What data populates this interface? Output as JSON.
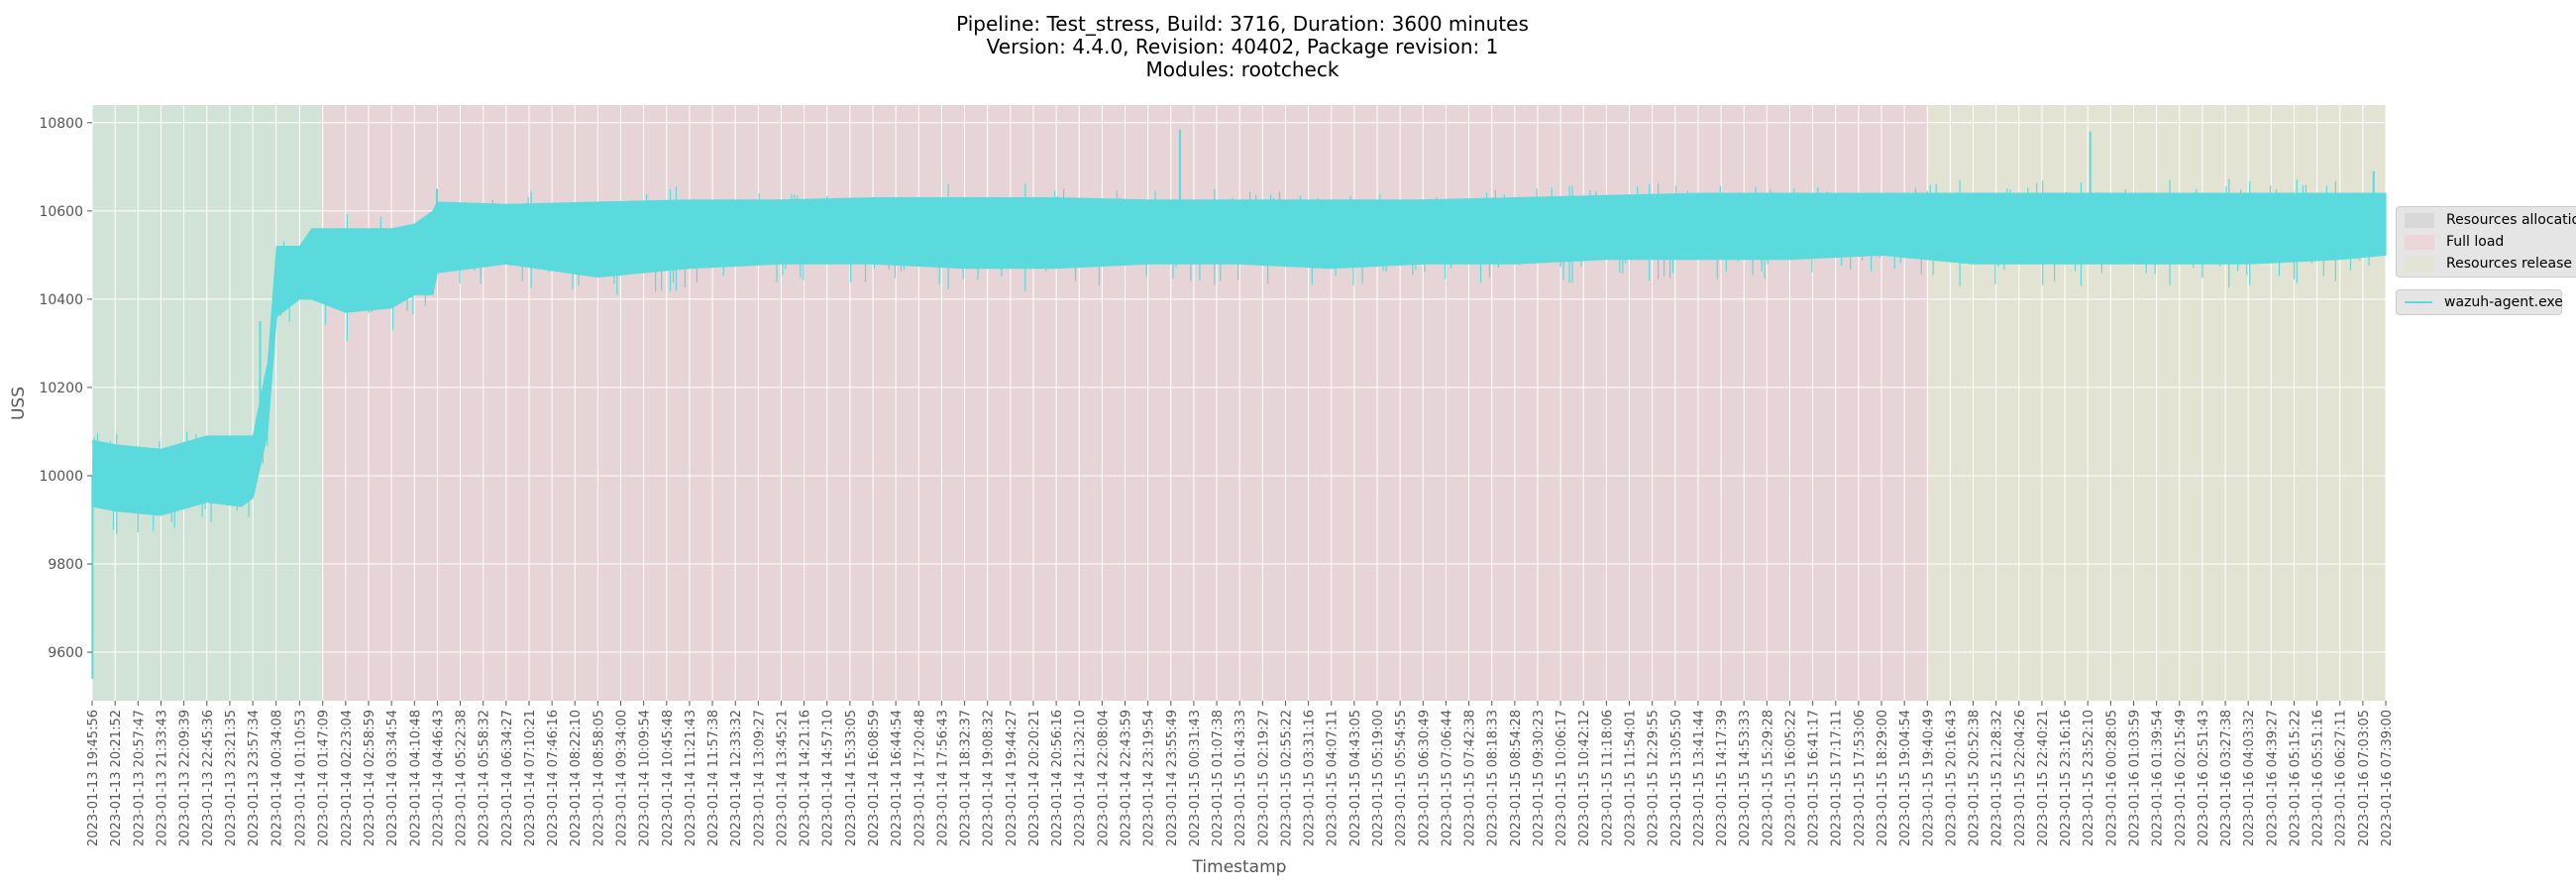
{
  "chart_data": {
    "type": "line",
    "title_lines": [
      "Pipeline: Test_stress, Build: 3716, Duration: 3600 minutes",
      "Version: 4.4.0, Revision: 40402, Package revision: 1",
      "Modules: rootcheck"
    ],
    "xlabel": "Timestamp",
    "ylabel": "USS",
    "ylim": [
      9490,
      10840
    ],
    "y_ticks": [
      9600,
      9800,
      10000,
      10200,
      10400,
      10600,
      10800
    ],
    "grid": true,
    "x_range": [
      "2023-01-13 19:45:56",
      "2023-01-16 07:39:00"
    ],
    "x_ticks": [
      "2023-01-13 19:45:56",
      "2023-01-13 20:21:52",
      "2023-01-13 20:57:47",
      "2023-01-13 21:33:43",
      "2023-01-13 22:09:39",
      "2023-01-13 22:45:36",
      "2023-01-13 23:21:35",
      "2023-01-13 23:57:34",
      "2023-01-14 00:34:08",
      "2023-01-14 01:10:53",
      "2023-01-14 01:47:09",
      "2023-01-14 02:23:04",
      "2023-01-14 02:58:59",
      "2023-01-14 03:34:54",
      "2023-01-14 04:10:48",
      "2023-01-14 04:46:43",
      "2023-01-14 05:22:38",
      "2023-01-14 05:58:32",
      "2023-01-14 06:34:27",
      "2023-01-14 07:10:21",
      "2023-01-14 07:46:16",
      "2023-01-14 08:22:10",
      "2023-01-14 08:58:05",
      "2023-01-14 09:34:00",
      "2023-01-14 10:09:54",
      "2023-01-14 10:45:48",
      "2023-01-14 11:21:43",
      "2023-01-14 11:57:38",
      "2023-01-14 12:33:32",
      "2023-01-14 13:09:27",
      "2023-01-14 13:45:21",
      "2023-01-14 14:21:16",
      "2023-01-14 14:57:10",
      "2023-01-14 15:33:05",
      "2023-01-14 16:08:59",
      "2023-01-14 16:44:54",
      "2023-01-14 17:20:48",
      "2023-01-14 17:56:43",
      "2023-01-14 18:32:37",
      "2023-01-14 19:08:32",
      "2023-01-14 19:44:27",
      "2023-01-14 20:20:21",
      "2023-01-14 20:56:16",
      "2023-01-14 21:32:10",
      "2023-01-14 22:08:04",
      "2023-01-14 22:43:59",
      "2023-01-14 23:19:54",
      "2023-01-14 23:55:49",
      "2023-01-15 00:31:43",
      "2023-01-15 01:07:38",
      "2023-01-15 01:43:33",
      "2023-01-15 02:19:27",
      "2023-01-15 02:55:22",
      "2023-01-15 03:31:16",
      "2023-01-15 04:07:11",
      "2023-01-15 04:43:05",
      "2023-01-15 05:19:00",
      "2023-01-15 05:54:55",
      "2023-01-15 06:30:49",
      "2023-01-15 07:06:44",
      "2023-01-15 07:42:38",
      "2023-01-15 08:18:33",
      "2023-01-15 08:54:28",
      "2023-01-15 09:30:23",
      "2023-01-15 10:06:17",
      "2023-01-15 10:42:12",
      "2023-01-15 11:18:06",
      "2023-01-15 11:54:01",
      "2023-01-15 12:29:55",
      "2023-01-15 13:05:50",
      "2023-01-15 13:41:44",
      "2023-01-15 14:17:39",
      "2023-01-15 14:53:33",
      "2023-01-15 15:29:28",
      "2023-01-15 16:05:22",
      "2023-01-15 16:41:17",
      "2023-01-15 17:17:11",
      "2023-01-15 17:53:06",
      "2023-01-15 18:29:00",
      "2023-01-15 19:04:54",
      "2023-01-15 19:40:49",
      "2023-01-15 20:16:43",
      "2023-01-15 20:52:38",
      "2023-01-15 21:28:32",
      "2023-01-15 22:04:26",
      "2023-01-15 22:40:21",
      "2023-01-15 23:16:16",
      "2023-01-15 23:52:10",
      "2023-01-16 00:28:05",
      "2023-01-16 01:03:59",
      "2023-01-16 01:39:54",
      "2023-01-16 02:15:49",
      "2023-01-16 02:51:43",
      "2023-01-16 03:27:38",
      "2023-01-16 04:03:32",
      "2023-01-16 04:39:27",
      "2023-01-16 05:15:22",
      "2023-01-16 05:51:16",
      "2023-01-16 06:27:11",
      "2023-01-16 07:03:05",
      "2023-01-16 07:39:00"
    ],
    "phases": [
      {
        "name": "Resources allocation",
        "start": "2023-01-13 19:45:56",
        "end": "2023-01-14 01:47:09",
        "color": "#d0e3d6"
      },
      {
        "name": "Full load",
        "start": "2023-01-14 01:47:09",
        "end": "2023-01-15 19:40:49",
        "color": "#e6d4d6"
      },
      {
        "name": "Resources release",
        "start": "2023-01-15 19:40:49",
        "end": "2023-01-16 07:39:00",
        "color": "#e2e3d2"
      }
    ],
    "series": [
      {
        "name": "wazuh-agent.exe",
        "color": "#5adadc",
        "band": {
          "x": [
            "2023-01-13 19:45:56",
            "2023-01-13 19:47:00",
            "2023-01-13 20:21:52",
            "2023-01-13 21:33:43",
            "2023-01-13 22:45:36",
            "2023-01-13 23:40:00",
            "2023-01-13 23:58:00",
            "2023-01-14 00:20:00",
            "2023-01-14 00:21:00",
            "2023-01-14 00:35:00",
            "2023-01-14 01:10:53",
            "2023-01-14 01:30:00",
            "2023-01-14 02:23:04",
            "2023-01-14 03:34:54",
            "2023-01-14 04:10:48",
            "2023-01-14 04:40:00",
            "2023-01-14 04:46:43",
            "2023-01-14 06:34:27",
            "2023-01-14 08:58:05",
            "2023-01-14 11:21:43",
            "2023-01-14 13:45:21",
            "2023-01-14 16:08:59",
            "2023-01-14 18:32:37",
            "2023-01-14 20:56:16",
            "2023-01-14 23:19:54",
            "2023-01-15 01:43:33",
            "2023-01-15 04:07:11",
            "2023-01-15 06:30:49",
            "2023-01-15 08:54:28",
            "2023-01-15 11:18:06",
            "2023-01-15 13:41:44",
            "2023-01-15 16:05:22",
            "2023-01-15 18:29:00",
            "2023-01-15 20:52:38",
            "2023-01-15 23:16:16",
            "2023-01-16 01:39:54",
            "2023-01-16 04:03:32",
            "2023-01-16 06:27:11",
            "2023-01-16 07:39:00"
          ],
          "upper": [
            9550,
            10080,
            10070,
            10060,
            10090,
            10090,
            10090,
            10250,
            10250,
            10520,
            10520,
            10560,
            10560,
            10560,
            10570,
            10600,
            10620,
            10615,
            10620,
            10625,
            10625,
            10630,
            10630,
            10630,
            10625,
            10625,
            10625,
            10625,
            10630,
            10635,
            10640,
            10640,
            10640,
            10640,
            10640,
            10640,
            10640,
            10640,
            10640
          ],
          "lower": [
            9540,
            9930,
            9920,
            9910,
            9940,
            9930,
            9950,
            10090,
            10100,
            10360,
            10400,
            10400,
            10370,
            10380,
            10410,
            10410,
            10460,
            10480,
            10450,
            10470,
            10480,
            10480,
            10470,
            10470,
            10480,
            10480,
            10470,
            10480,
            10480,
            10490,
            10490,
            10490,
            10500,
            10480,
            10480,
            10480,
            10480,
            10490,
            10500
          ]
        },
        "spikes": [
          {
            "x": "2023-01-13 19:46:30",
            "y": 9540
          },
          {
            "x": "2023-01-14 00:09:00",
            "y": 10350
          },
          {
            "x": "2023-01-14 04:46:00",
            "y": 10650
          },
          {
            "x": "2023-01-15 00:10:00",
            "y": 10785
          },
          {
            "x": "2023-01-15 23:56:00",
            "y": 10780
          },
          {
            "x": "2023-01-16 07:20:00",
            "y": 10690
          }
        ]
      }
    ]
  },
  "legend": {
    "phases_labels": [
      "Resources allocation",
      "Full load",
      "Resources release"
    ],
    "series_label": "wazuh-agent.exe"
  }
}
